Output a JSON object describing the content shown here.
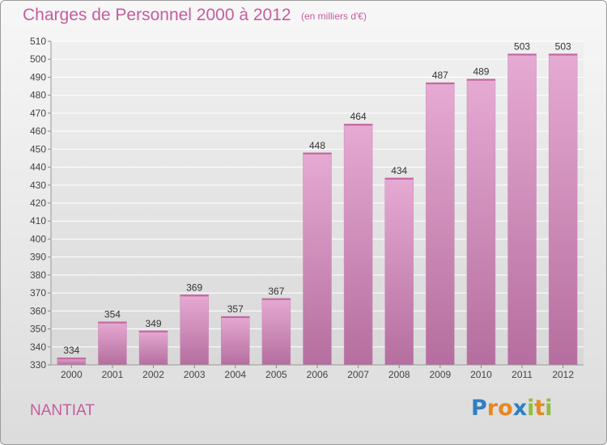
{
  "title": "Charges de Personnel 2000 à 2012",
  "subtitle": "(en milliers d'€)",
  "commune": "NANTIAT",
  "logo": {
    "text": "Proxiti",
    "letters": [
      {
        "ch": "P",
        "color": "#2f7fc4"
      },
      {
        "ch": "r",
        "color": "#e8881f"
      },
      {
        "ch": "o",
        "color": "#e8881f"
      },
      {
        "ch": "x",
        "color": "#2f7fc4"
      },
      {
        "ch": "i",
        "color": "#8cbf3f"
      },
      {
        "ch": "t",
        "color": "#e8881f"
      },
      {
        "ch": "i",
        "color": "#8cbf3f"
      }
    ]
  },
  "colors": {
    "accent": "#c45d9c",
    "bar_top": "#e4a8d0",
    "bar_bottom": "#b06a9a"
  },
  "chart_data": {
    "type": "bar",
    "categories": [
      "2000",
      "2001",
      "2002",
      "2003",
      "2004",
      "2005",
      "2006",
      "2007",
      "2008",
      "2009",
      "2010",
      "2011",
      "2012"
    ],
    "values": [
      334,
      354,
      349,
      369,
      357,
      367,
      448,
      464,
      434,
      487,
      489,
      503,
      503
    ],
    "ylim": [
      330,
      510
    ],
    "yticks": [
      330,
      340,
      350,
      360,
      370,
      380,
      390,
      400,
      410,
      420,
      430,
      440,
      450,
      460,
      470,
      480,
      490,
      500,
      510
    ],
    "grid": true,
    "legend": "none"
  }
}
